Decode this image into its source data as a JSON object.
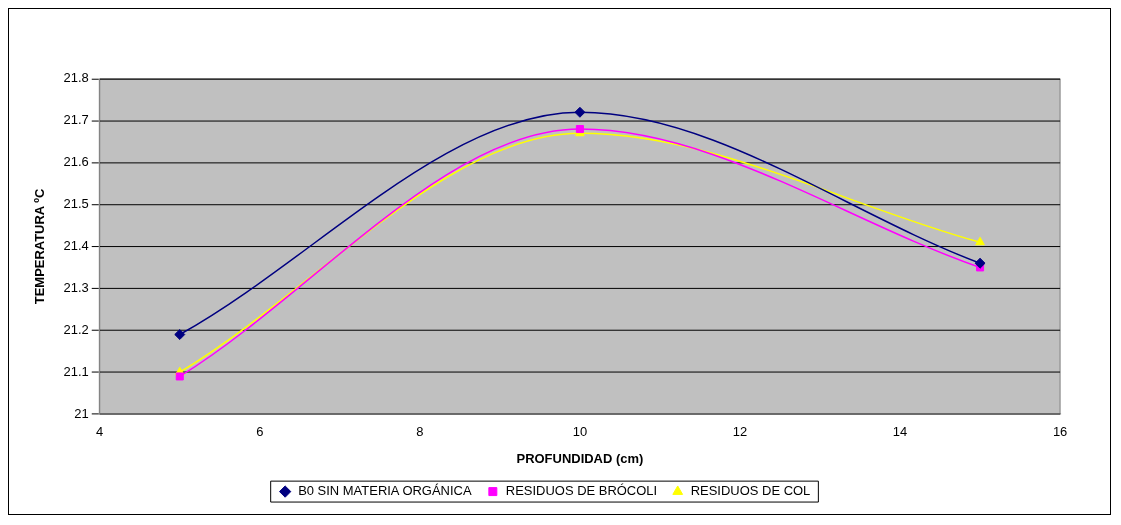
{
  "chart_data": {
    "type": "line",
    "xlabel": "PROFUNDIDAD (cm)",
    "ylabel": "TEMPERATURA ºC",
    "x": [
      5,
      10,
      15
    ],
    "series": [
      {
        "name": "B0 SIN MATERIA ORGÁNICA",
        "color": "#000080",
        "marker": "diamond",
        "values": [
          21.19,
          21.72,
          21.36
        ]
      },
      {
        "name": "RESIDUOS DE BRÓCOLI",
        "color": "#ff00ff",
        "marker": "square",
        "values": [
          21.09,
          21.68,
          21.35
        ]
      },
      {
        "name": "RESIDUOS DE COL",
        "color": "#ffff00",
        "marker": "triangle",
        "values": [
          21.1,
          21.67,
          21.41
        ]
      }
    ],
    "xlim": [
      4,
      16
    ],
    "xticks": [
      4,
      6,
      8,
      10,
      12,
      14,
      16
    ],
    "ylim": [
      21,
      21.8
    ],
    "yticks": [
      21,
      21.1,
      21.2,
      21.3,
      21.4,
      21.5,
      21.6,
      21.7,
      21.8
    ],
    "grid": "y",
    "legend": "bottom",
    "line_style": "solid"
  }
}
